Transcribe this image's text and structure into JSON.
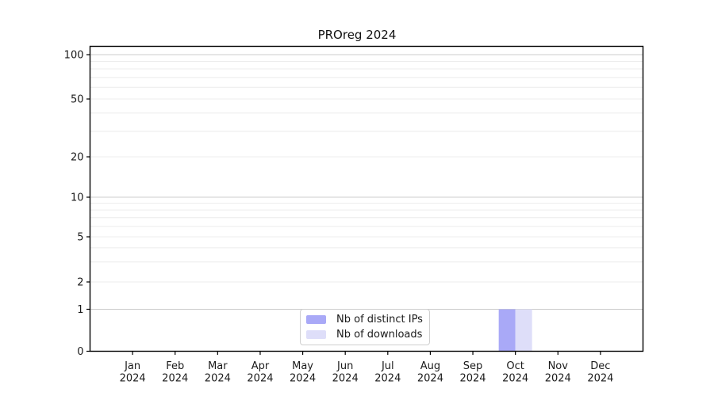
{
  "chart_data": {
    "type": "bar",
    "title": "PROreg 2024",
    "categories": [
      "Jan",
      "Feb",
      "Mar",
      "Apr",
      "May",
      "Jun",
      "Jul",
      "Aug",
      "Sep",
      "Oct",
      "Nov",
      "Dec"
    ],
    "x_year": "2024",
    "y_axis": {
      "scale": "log-like with zero baseline",
      "labeled_ticks": [
        0,
        1,
        2,
        5,
        10,
        20,
        50,
        100
      ],
      "gridlines_dark": [
        1,
        10,
        100
      ],
      "gridlines_light": [
        2,
        3,
        4,
        5,
        6,
        7,
        8,
        9,
        20,
        30,
        40,
        50,
        60,
        70,
        80,
        90
      ],
      "ylim": [
        0,
        115
      ],
      "grid": "on"
    },
    "series": [
      {
        "name": "Nb of distinct IPs",
        "color": "#a9a9f7",
        "values": [
          0,
          0,
          0,
          0,
          0,
          0,
          0,
          0,
          0,
          1,
          0,
          0
        ]
      },
      {
        "name": "Nb of downloads",
        "color": "#dedef9",
        "values": [
          0,
          0,
          0,
          0,
          0,
          0,
          0,
          0,
          0,
          1,
          0,
          0
        ]
      }
    ],
    "legend": {
      "position": "lower center"
    }
  }
}
